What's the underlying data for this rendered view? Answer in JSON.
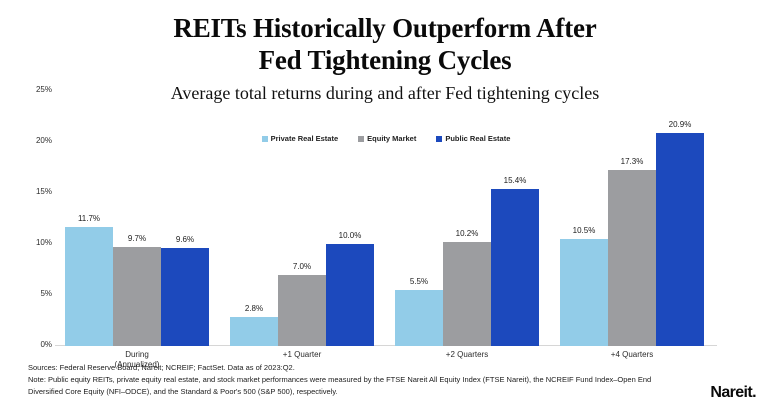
{
  "header": {
    "title_line1": "REITs Historically Outperform After",
    "title_line2": "Fed Tightening Cycles",
    "subtitle": "Average total returns during and after Fed tightening cycles"
  },
  "chart_data": {
    "type": "bar",
    "title": "REITs Historically Outperform After Fed Tightening Cycles",
    "subtitle": "Average total returns during and after Fed tightening cycles",
    "categories": [
      "During (Annualized)",
      "+1 Quarter",
      "+2 Quarters",
      "+4 Quarters"
    ],
    "categories_lines": [
      [
        "During",
        "(Annualized)"
      ],
      [
        "+1 Quarter"
      ],
      [
        "+2 Quarters"
      ],
      [
        "+4 Quarters"
      ]
    ],
    "series": [
      {
        "name": "Private Real Estate",
        "color": "#92CCE8",
        "values": [
          11.7,
          2.8,
          5.5,
          10.5
        ]
      },
      {
        "name": "Equity Market",
        "color": "#9C9DA0",
        "values": [
          9.7,
          7.0,
          10.2,
          17.3
        ]
      },
      {
        "name": "Public Real Estate",
        "color": "#1C49BD",
        "values": [
          9.6,
          10.0,
          15.4,
          20.9
        ]
      }
    ],
    "value_suffix": "%",
    "ylabel": "",
    "xlabel": "",
    "y_axis": {
      "min": 0,
      "max": 25,
      "tick_step": 5,
      "ticks": [
        "0%",
        "5%",
        "10%",
        "15%",
        "20%",
        "25%"
      ]
    },
    "grid": false,
    "legend_position": "top-center",
    "value_labels": true
  },
  "footer": {
    "lines": [
      "Sources: Federal Reserve Board; Nareit; NCREIF; FactSet. Data as of 2023:Q2.",
      "Note: Public equity REITs, private equity real estate, and stock market performances were measured by the FTSE Nareit All Equity Index (FTSE Nareit), the NCREIF Fund Index–Open End",
      "Diversified Core Equity (NFI–ODCE), and the Standard & Poor's 500 (S&P 500), respectively."
    ]
  },
  "brand": {
    "logo_text": "Nareit",
    "logo_suffix": "."
  }
}
